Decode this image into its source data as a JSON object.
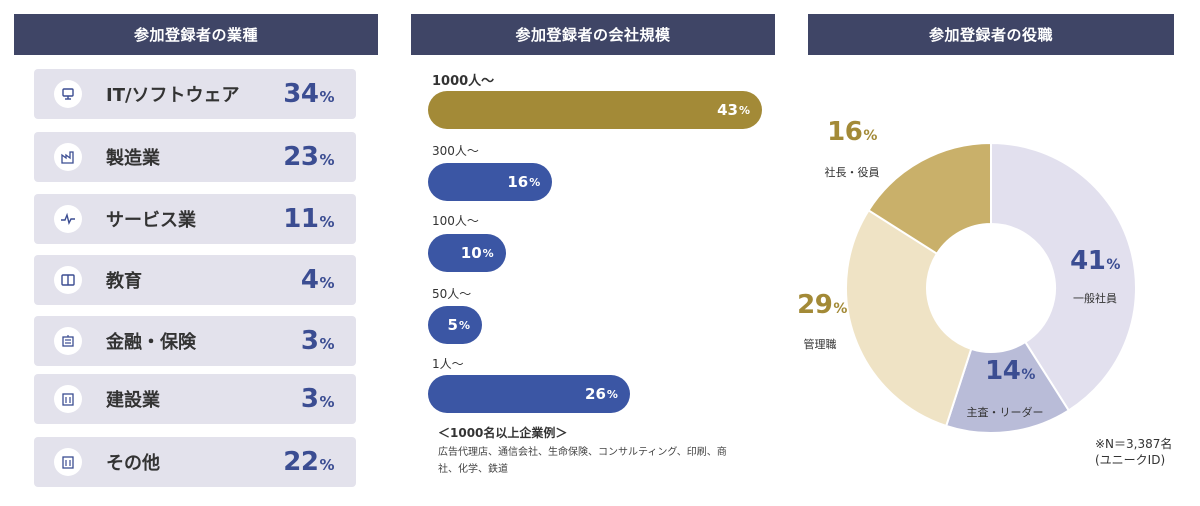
{
  "headers": {
    "industry": "参加登録者の業種",
    "company_size": "参加登録者の会社規模",
    "position": "参加登録者の役職"
  },
  "percent_sign": "%",
  "industry": [
    {
      "label": "IT/ソフトウェア",
      "value": "34",
      "icon": "monitor-icon"
    },
    {
      "label": "製造業",
      "value": "23",
      "icon": "factory-icon"
    },
    {
      "label": "サービス業",
      "value": "11",
      "icon": "pulse-icon"
    },
    {
      "label": "教育",
      "value": "4",
      "icon": "book-icon"
    },
    {
      "label": "金融・保険",
      "value": "3",
      "icon": "finance-icon"
    },
    {
      "label": "建設業",
      "value": "3",
      "icon": "building-icon"
    },
    {
      "label": "その他",
      "value": "22",
      "icon": "building-icon"
    }
  ],
  "company_size": {
    "examples_title": "＜1000名以上企業例＞",
    "examples_body": "広告代理店、通信会社、生命保険、コンサルティング、印刷、商社、化学、鉄道"
  },
  "position": {
    "note_line1": "※N＝3,387名",
    "note_line2": "(ユニークID)"
  },
  "colors": {
    "header": "#3f4566",
    "industry_row": "#e3e2ec",
    "accent_blue": "#3b4d92",
    "bar_blue": "#3b56a4",
    "bar_gold": "#a38a37"
  },
  "chart_data": [
    {
      "type": "bar",
      "title": "参加登録者の業種",
      "categories": [
        "IT/ソフトウェア",
        "製造業",
        "サービス業",
        "教育",
        "金融・保険",
        "建設業",
        "その他"
      ],
      "values": [
        34,
        23,
        11,
        4,
        3,
        3,
        22
      ]
    },
    {
      "type": "bar",
      "title": "参加登録者の会社規模",
      "orientation": "horizontal",
      "categories": [
        "1000人～",
        "300人～",
        "100人～",
        "50人～",
        "1人～"
      ],
      "values": [
        43,
        16,
        10,
        5,
        26
      ],
      "highlight": "1000人～",
      "colors": [
        "#a38a37",
        "#3b56a4",
        "#3b56a4",
        "#3b56a4",
        "#3b56a4"
      ]
    },
    {
      "type": "pie",
      "title": "参加登録者の役職",
      "donut": true,
      "categories": [
        "一般社員",
        "主査・リーダー",
        "管理職",
        "社長・役員"
      ],
      "values": [
        41,
        14,
        29,
        16
      ],
      "colors": [
        "#e2e0ee",
        "#b9bcd8",
        "#efe3c5",
        "#c9b06a"
      ],
      "label_colors": [
        "#3b4d92",
        "#3b4d92",
        "#a38a37",
        "#a38a37"
      ]
    }
  ]
}
